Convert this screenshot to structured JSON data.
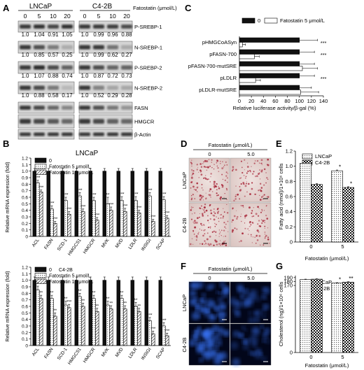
{
  "panels": {
    "A": "A",
    "B": "B",
    "C": "C",
    "D": "D",
    "E": "E",
    "F": "F",
    "G": "G"
  },
  "blot": {
    "cell_lines": [
      "LNCaP",
      "C4-2B"
    ],
    "doses": [
      "0",
      "5",
      "10",
      "20"
    ],
    "dose_label": "Fatostatin (μmol/L)",
    "proteins": [
      "P-SREBP-1",
      "N-SREBP-1",
      "P-SREBP-2",
      "N-SREBP-2",
      "FASN",
      "HMGCR",
      "β-Actin"
    ],
    "quant": [
      {
        "lncap": [
          "1.0",
          "1.04",
          "0.91",
          "1.05"
        ],
        "c42b": [
          "1.0",
          "0.99",
          "0.96",
          "0.88"
        ]
      },
      {
        "lncap": [
          "1.0",
          "0.85",
          "0.57",
          "0.25"
        ],
        "c42b": [
          "1.0",
          "0.99",
          "0.62",
          "0.27"
        ]
      },
      {
        "lncap": [
          "1.0",
          "1.07",
          "0.88",
          "0.74"
        ],
        "c42b": [
          "1.0",
          "0.87",
          "0.72",
          "0.73"
        ]
      },
      {
        "lncap": [
          "1.0",
          "0.88",
          "0.58",
          "0.17"
        ],
        "c42b": [
          "1.0",
          "0.52",
          "0.29",
          "0.28"
        ]
      }
    ]
  },
  "mrna_legend": [
    "0",
    "Fatostatin 5 μmol/L",
    "Fatostatin 10 μmol/L"
  ],
  "chart_data": [
    {
      "panel": "B-LNCaP",
      "type": "bar",
      "title": "LNCaP",
      "categories": [
        "ACL",
        "FASN",
        "SCD-1",
        "HMGCS1",
        "HMGCR",
        "MVK",
        "MVD",
        "LDLR",
        "INSIGI",
        "SCAP"
      ],
      "series": [
        {
          "name": "0",
          "values": [
            1,
            1,
            1,
            1,
            1,
            1,
            1,
            1,
            1,
            1
          ],
          "errors": [
            0.04,
            0.04,
            0.04,
            0.04,
            0.04,
            0.04,
            0.04,
            0.04,
            0.04,
            0.04
          ]
        },
        {
          "name": "Fatostatin 5 μmol/L",
          "values": [
            0.82,
            0.42,
            0.55,
            0.62,
            0.55,
            0.5,
            0.55,
            0.55,
            0.62,
            0.56
          ],
          "errors": [
            0.04,
            0.05,
            0.05,
            0.05,
            0.05,
            0.1,
            0.06,
            0.06,
            0.05,
            0.05
          ]
        },
        {
          "name": "Fatostatin 10 μmol/L",
          "values": [
            0.68,
            0.2,
            0.34,
            0.38,
            0.25,
            0.4,
            0.38,
            0.36,
            0.23,
            0.28
          ],
          "errors": [
            0.03,
            0.03,
            0.04,
            0.04,
            0.04,
            0.05,
            0.05,
            0.04,
            0.03,
            0.04
          ]
        }
      ],
      "sig": [
        [
          "",
          "***",
          "***"
        ],
        [
          "",
          "***",
          "***"
        ],
        [
          "",
          "***",
          "***"
        ],
        [
          "",
          "***",
          "***"
        ],
        [
          "",
          "***",
          "***"
        ],
        [
          "",
          "**",
          "***"
        ],
        [
          "",
          "***",
          "***"
        ],
        [
          "",
          "***",
          "***"
        ],
        [
          "",
          "***",
          "***"
        ],
        [
          "",
          "***",
          "***"
        ]
      ],
      "ylabel": "Relative mRNA expression (fold)",
      "ylim": [
        0,
        1.2
      ],
      "yticks": [
        "0",
        "0.1",
        "0.2",
        "0.3",
        "0.4",
        "0.5",
        "0.6",
        "0.7",
        "0.8",
        "0.9",
        "1.0",
        "1.1",
        "1.2"
      ]
    },
    {
      "panel": "B-C4-2B",
      "type": "bar",
      "title": "C4-2B",
      "categories": [
        "ACL",
        "FASN",
        "SCD-1",
        "HMGCS1",
        "HMGCR",
        "MVK",
        "MVD",
        "LDLR",
        "INSIGI",
        "SCAP"
      ],
      "series": [
        {
          "name": "0",
          "values": [
            1,
            1,
            1,
            1,
            1,
            1,
            1,
            1,
            1,
            1
          ],
          "errors": [
            0.05,
            0.05,
            0.05,
            0.05,
            0.05,
            0.05,
            0.05,
            0.05,
            0.05,
            0.05
          ]
        },
        {
          "name": "Fatostatin 5 μmol/L",
          "values": [
            0.85,
            0.72,
            0.62,
            0.75,
            0.72,
            0.62,
            0.72,
            0.6,
            0.38,
            0.3
          ],
          "errors": [
            0.06,
            0.05,
            0.06,
            0.05,
            0.05,
            0.06,
            0.05,
            0.06,
            0.05,
            0.05
          ]
        },
        {
          "name": "Fatostatin 10 μmol/L",
          "values": [
            0.72,
            0.45,
            0.58,
            0.6,
            0.52,
            0.56,
            0.56,
            0.52,
            0.18,
            0.15
          ],
          "errors": [
            0.05,
            0.05,
            0.05,
            0.05,
            0.05,
            0.05,
            0.05,
            0.05,
            0.04,
            0.04
          ]
        }
      ],
      "sig": [
        [
          "",
          "*",
          "**"
        ],
        [
          "",
          "**",
          "**"
        ],
        [
          "",
          "**",
          "***"
        ],
        [
          "",
          "**",
          "**"
        ],
        [
          "",
          "**",
          "**"
        ],
        [
          "",
          "**",
          "**"
        ],
        [
          "",
          "**",
          "**"
        ],
        [
          "",
          "**",
          "**"
        ],
        [
          "",
          "***",
          "***"
        ],
        [
          "",
          "***",
          "***"
        ]
      ],
      "ylabel": "Relative mRNA expression (fold)",
      "ylim": [
        0,
        1.2
      ],
      "yticks": [
        "0",
        "0.1",
        "0.2",
        "0.3",
        "0.4",
        "0.5",
        "0.6",
        "0.7",
        "0.8",
        "0.9",
        "1.0",
        "1.1",
        "1.2"
      ]
    },
    {
      "panel": "C",
      "type": "bar",
      "orientation": "horizontal",
      "categories": [
        "pHMGCoASyn",
        "pFASN-700",
        "pFASN-700-mutSRE",
        "pLDLR",
        "pLDLR-mutSRE"
      ],
      "series": [
        {
          "name": "0",
          "values": [
            100,
            100,
            100,
            100,
            100
          ],
          "errors": [
            30,
            25,
            25,
            25,
            20
          ]
        },
        {
          "name": "Fatostatin 5 μmol/L",
          "values": [
            5,
            25,
            105,
            27,
            102
          ],
          "errors": [
            5,
            8,
            25,
            8,
            30
          ]
        }
      ],
      "sig": [
        "***",
        "***",
        "",
        "***",
        ""
      ],
      "xlabel": "Relative luciferase activity/β-gal (%)",
      "xlim": [
        0,
        140
      ],
      "xticks": [
        "0",
        "20",
        "40",
        "60",
        "80",
        "100",
        "120",
        "140"
      ]
    },
    {
      "panel": "E",
      "type": "bar",
      "categories": [
        "0",
        "5"
      ],
      "series": [
        {
          "name": "LNCaP",
          "values": [
            1.04,
            0.94
          ],
          "errors": [
            0.015,
            0.01
          ]
        },
        {
          "name": "C4-2B",
          "values": [
            0.76,
            0.72
          ],
          "errors": [
            0.01,
            0.01
          ]
        }
      ],
      "sig": [
        [
          "",
          ""
        ],
        [
          "*",
          "*"
        ]
      ],
      "xlabel": "Fatostatin (μmol/L)",
      "ylabel": "Fatty acid (nmol)/1×10⁶ cells",
      "ylim": [
        0,
        1.2
      ],
      "yticks": [
        "0",
        "0.2",
        "0.4",
        "0.6",
        "0.8",
        "1.0",
        "1.2"
      ]
    },
    {
      "panel": "G",
      "type": "bar",
      "categories": [
        "0",
        "5"
      ],
      "series": [
        {
          "name": "LNCaP",
          "values": [
            185,
            176
          ],
          "errors": [
            1,
            1
          ]
        },
        {
          "name": "C4-2B",
          "values": [
            186,
            178.5
          ],
          "errors": [
            1,
            1
          ]
        }
      ],
      "sig": [
        [
          "",
          ""
        ],
        [
          "*",
          "**"
        ]
      ],
      "xlabel": "Fatostatin (μmol/L)",
      "ylabel": "Cholesterol (ng)/1×10⁶ cells",
      "ylim": [
        0,
        195
      ],
      "yticks": [
        "0",
        "170",
        "180",
        "190"
      ]
    }
  ],
  "micro": {
    "header": "Fatostatin (μmol/L)",
    "doses": [
      "0",
      "5.0"
    ],
    "rows": [
      "LNCaP",
      "C4-2B"
    ],
    "stain_D": "#a8283a",
    "stain_F": "#3a78ff"
  },
  "colors": {
    "legend_black": "#111111",
    "hatch": "#222222"
  }
}
